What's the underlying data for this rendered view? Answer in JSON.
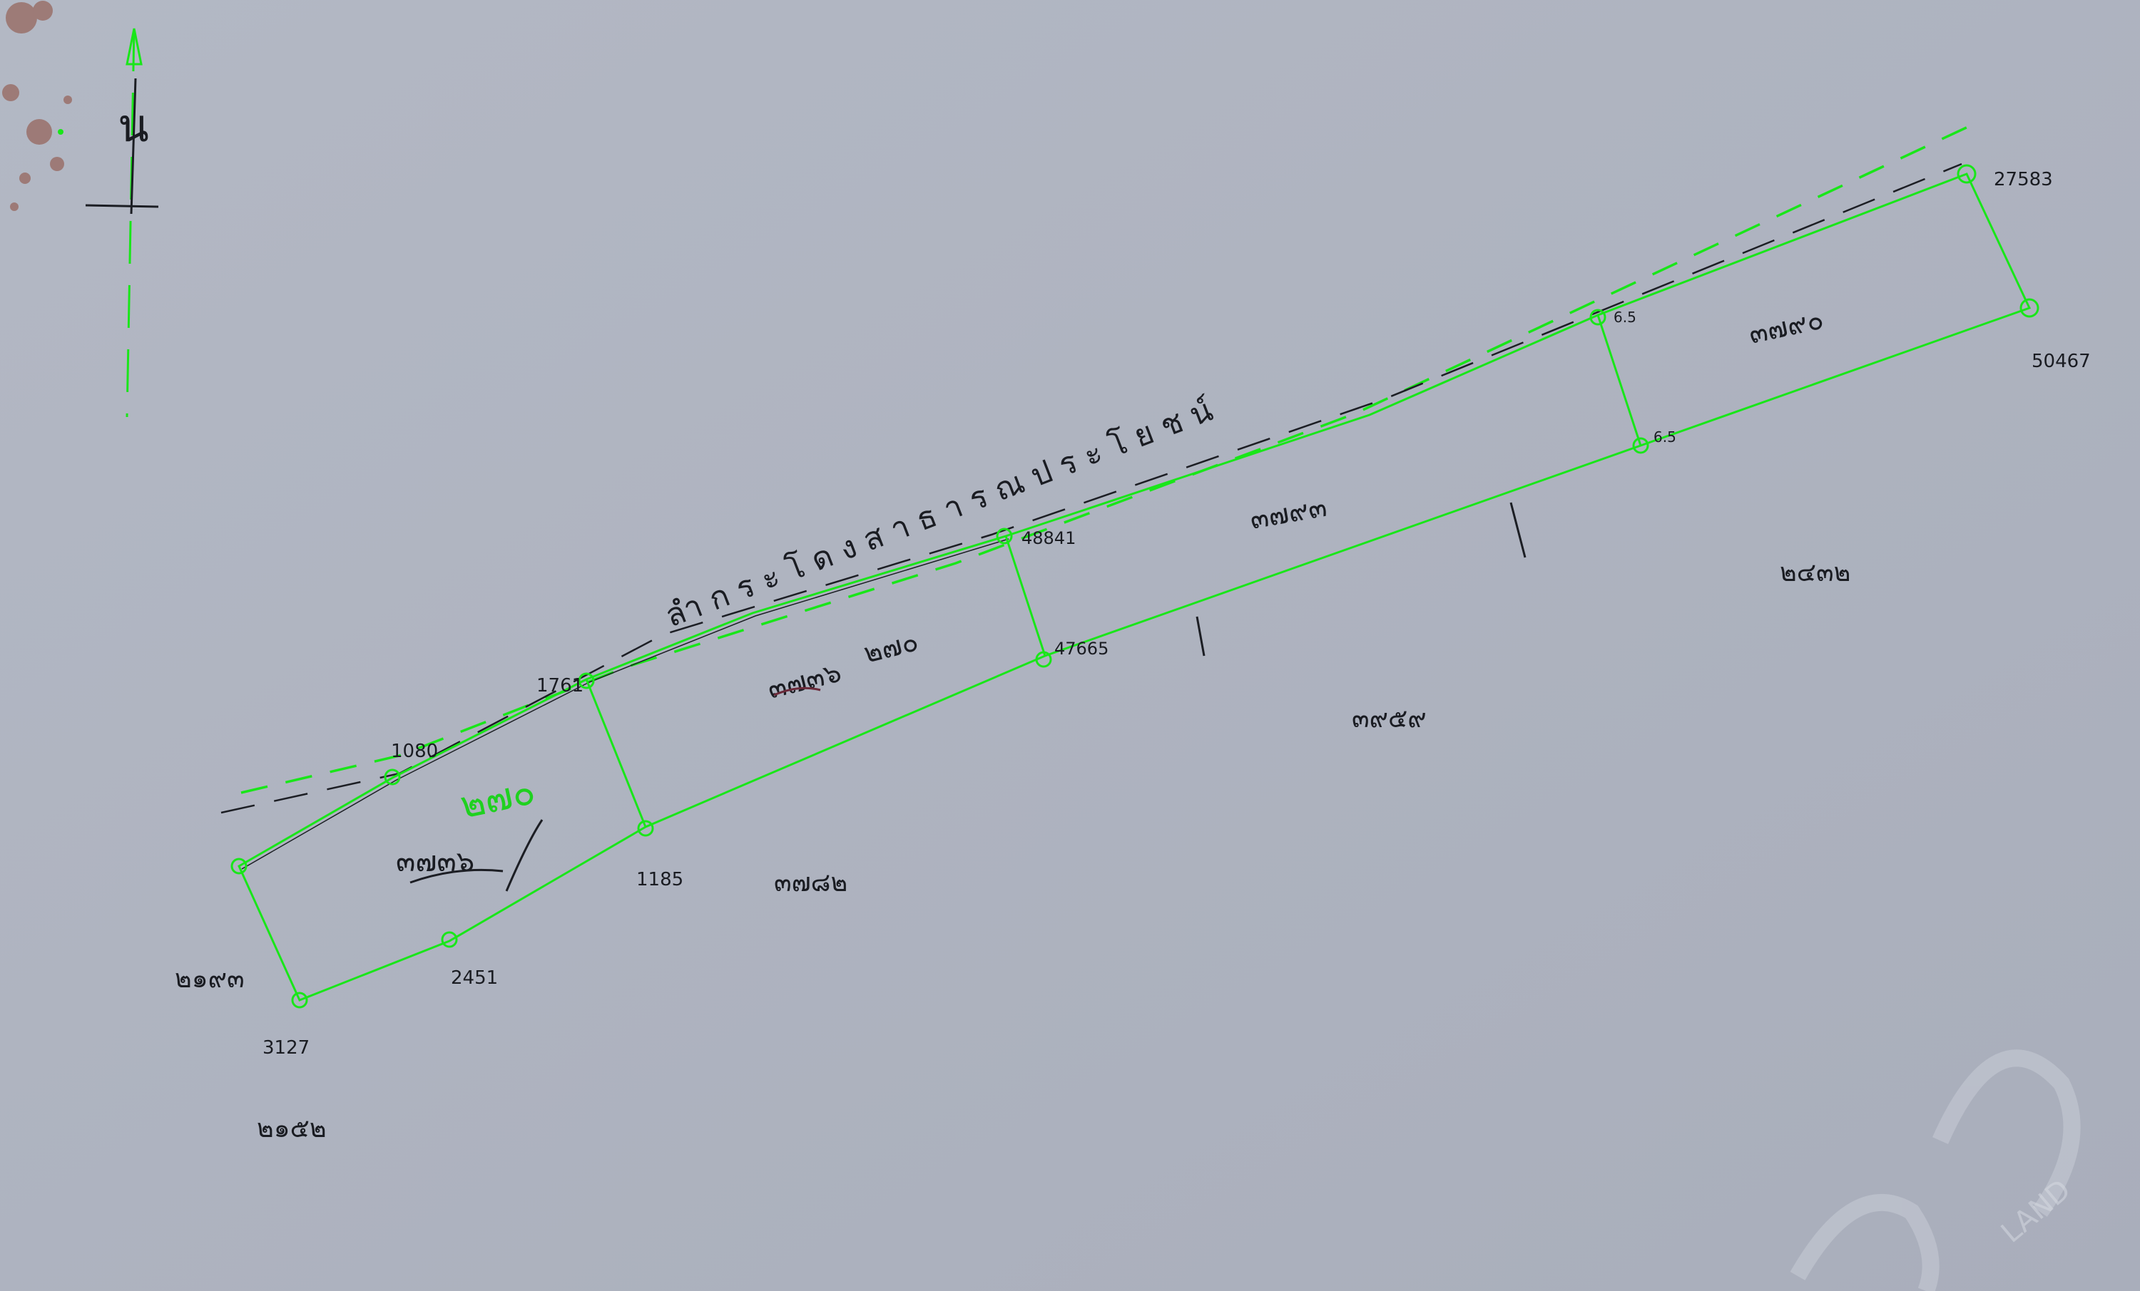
{
  "map": {
    "canal_label": "ลำกระโดงสาธารณประโยชน์",
    "north_label": "น",
    "parcels": [
      {
        "id": "west",
        "main_label": "๓๗๓๖",
        "note": "๒๗๐"
      },
      {
        "id": "middle-west",
        "main_label": "๓๗๓๖",
        "note": "๒๗๐"
      },
      {
        "id": "middle-east",
        "main_label": "๓๗๙๓"
      },
      {
        "id": "east",
        "main_label": "๓๗๙๐"
      }
    ],
    "adjacent_labels": [
      "๓๗๘๒",
      "๓๙๕๙",
      "๒๔๓๒",
      "๒๑๙๓",
      "๒๑๕๒"
    ],
    "corner_labels": [
      "1080",
      "1761",
      "1185",
      "2451",
      "3127",
      "48841",
      "47665",
      "6.5",
      "6.5",
      "27583",
      "50467"
    ],
    "watermark": "LAND"
  },
  "colors": {
    "paper": "#aeb3c0",
    "overlay_green": "#19e619",
    "ink_black": "#1c1e24",
    "stain_red": "#8c4a3a"
  }
}
